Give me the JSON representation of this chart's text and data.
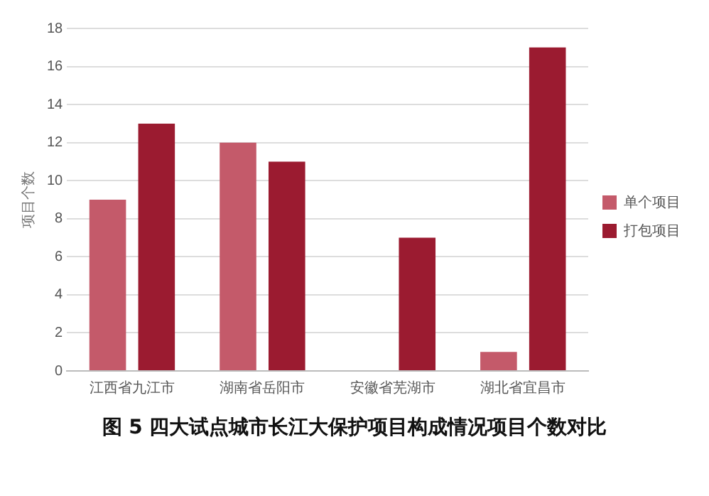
{
  "chart_data": {
    "type": "bar",
    "title": "图 5 四大试点城市长江大保护项目构成情况项目个数对比",
    "ylabel": "项目个数",
    "categories": [
      "江西省九江市",
      "湖南省岳阳市",
      "安徽省芜湖市",
      "湖北省宜昌市"
    ],
    "series": [
      {
        "name": "单个项目",
        "color": "#c45a6a",
        "values": [
          9,
          12,
          0,
          1
        ]
      },
      {
        "name": "打包项目",
        "color": "#9b1b30",
        "values": [
          13,
          11,
          7,
          17
        ]
      }
    ],
    "ylim": [
      0,
      18
    ],
    "yticks": [
      0,
      2,
      4,
      6,
      8,
      10,
      12,
      14,
      16,
      18
    ],
    "grid": "y",
    "legend": "right"
  }
}
